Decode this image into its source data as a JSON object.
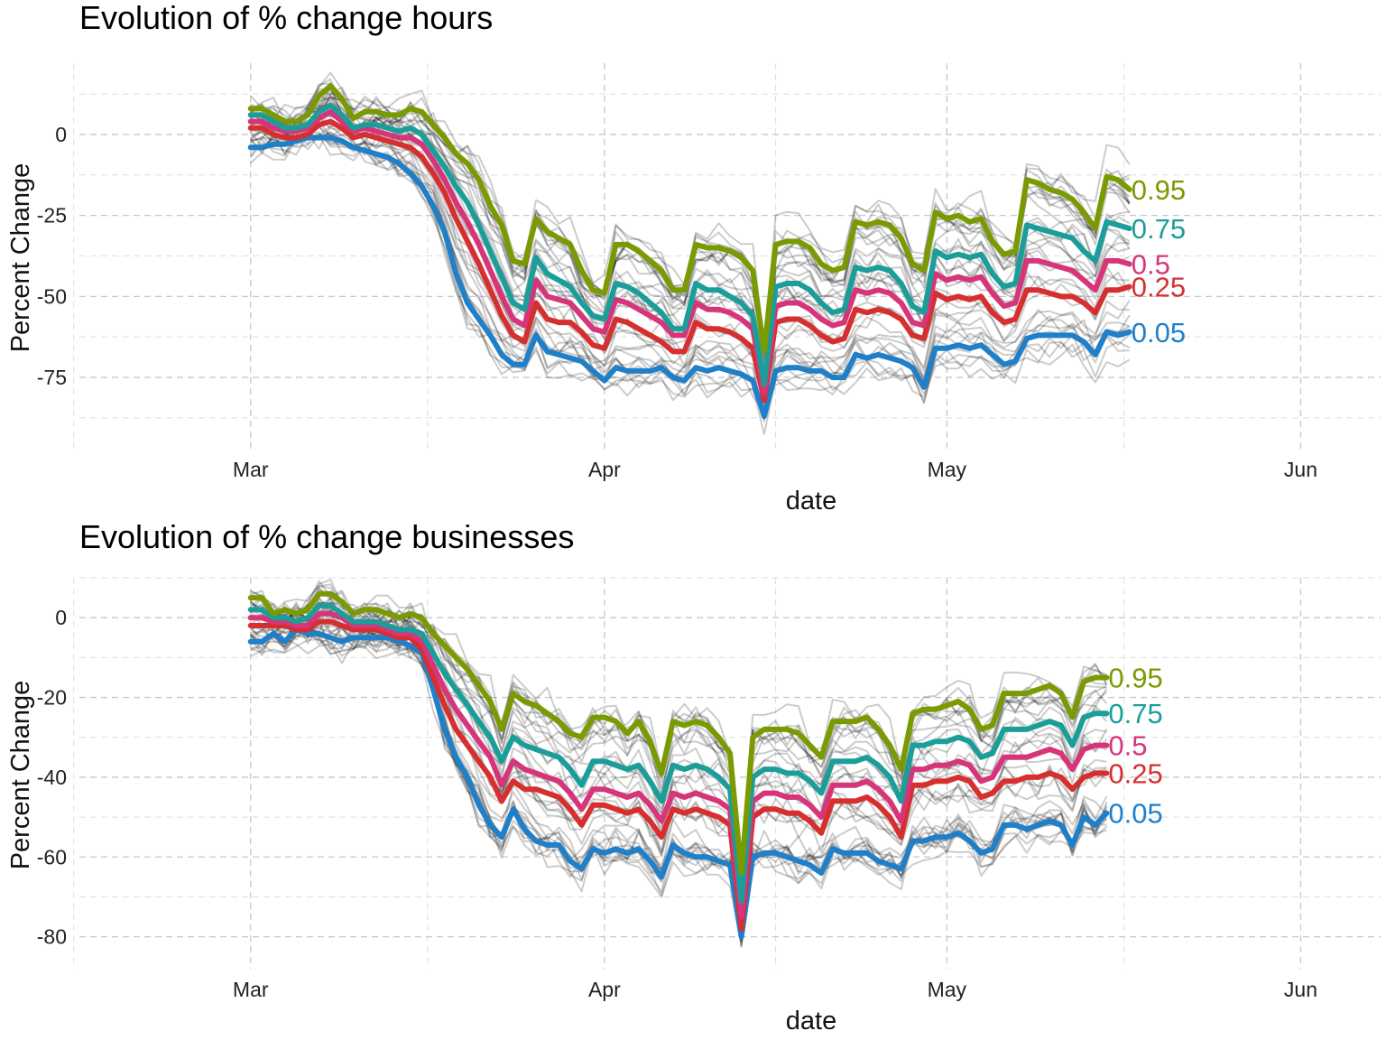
{
  "chart_data": [
    {
      "type": "line",
      "title": "Evolution of % change hours",
      "xlabel": "date",
      "ylabel": "Percent Change",
      "x_ticks": [
        "Mar",
        "Apr",
        "May",
        "Jun"
      ],
      "x_tick_dates": [
        "2020-03-01",
        "2020-04-01",
        "2020-05-01",
        "2020-06-01"
      ],
      "xlim": [
        "2020-02-15",
        "2020-06-08"
      ],
      "y_ticks": [
        0,
        -25,
        -50,
        -75
      ],
      "ylim": [
        -97,
        22
      ],
      "grid": true,
      "legend": "direct labels at line ends",
      "series": [
        {
          "name": "0.95",
          "color": "#7a9a01",
          "x_start": "2020-03-01",
          "values": [
            8,
            8,
            6,
            4,
            4,
            6,
            12,
            15,
            11,
            5,
            7,
            7,
            6,
            6,
            8,
            7,
            3,
            -1,
            -6,
            -9,
            -14,
            -22,
            -28,
            -39,
            -40,
            -26,
            -30,
            -32,
            -34,
            -42,
            -48,
            -49,
            -34,
            -34,
            -36,
            -39,
            -42,
            -48,
            -48,
            -34,
            -35,
            -35,
            -36,
            -38,
            -42,
            -67,
            -34,
            -33,
            -33,
            -35,
            -40,
            -42,
            -41,
            -27,
            -28,
            -27,
            -28,
            -32,
            -40,
            -42,
            -24,
            -26,
            -25,
            -27,
            -26,
            -33,
            -37,
            -36,
            -14,
            -15,
            -17,
            -18,
            -20,
            -24,
            -29,
            -13,
            -14,
            -17
          ]
        },
        {
          "name": "0.75",
          "color": "#1b9e9a",
          "x_start": "2020-03-01",
          "values": [
            6,
            6,
            4,
            2,
            2,
            3,
            7,
            9,
            6,
            2,
            3,
            3,
            2,
            1,
            2,
            0,
            -5,
            -10,
            -16,
            -21,
            -28,
            -36,
            -44,
            -52,
            -54,
            -38,
            -43,
            -45,
            -47,
            -52,
            -56,
            -57,
            -46,
            -47,
            -49,
            -52,
            -55,
            -60,
            -60,
            -46,
            -48,
            -48,
            -50,
            -52,
            -56,
            -77,
            -47,
            -46,
            -46,
            -48,
            -52,
            -55,
            -54,
            -41,
            -42,
            -41,
            -42,
            -46,
            -53,
            -55,
            -36,
            -38,
            -37,
            -38,
            -37,
            -43,
            -47,
            -46,
            -28,
            -29,
            -30,
            -31,
            -32,
            -36,
            -39,
            -27,
            -28,
            -29
          ]
        },
        {
          "name": "0.5",
          "color": "#d6357a",
          "x_start": "2020-03-01",
          "values": [
            4,
            4,
            2,
            1,
            1,
            2,
            5,
            7,
            4,
            1,
            2,
            1,
            0,
            -1,
            -1,
            -3,
            -8,
            -14,
            -21,
            -27,
            -34,
            -42,
            -50,
            -57,
            -59,
            -45,
            -50,
            -51,
            -52,
            -56,
            -60,
            -61,
            -51,
            -52,
            -54,
            -56,
            -58,
            -62,
            -62,
            -52,
            -54,
            -54,
            -55,
            -57,
            -60,
            -80,
            -53,
            -52,
            -52,
            -54,
            -57,
            -59,
            -58,
            -48,
            -49,
            -48,
            -49,
            -52,
            -58,
            -59,
            -43,
            -45,
            -44,
            -45,
            -44,
            -49,
            -53,
            -52,
            -39,
            -39,
            -40,
            -41,
            -42,
            -45,
            -48,
            -39,
            -39,
            -40
          ]
        },
        {
          "name": "0.25",
          "color": "#d62f2f",
          "x_start": "2020-03-01",
          "values": [
            2,
            2,
            0,
            -1,
            -1,
            0,
            3,
            4,
            2,
            -1,
            0,
            -1,
            -2,
            -3,
            -4,
            -7,
            -12,
            -18,
            -26,
            -33,
            -40,
            -48,
            -56,
            -62,
            -64,
            -52,
            -57,
            -58,
            -58,
            -61,
            -65,
            -66,
            -57,
            -58,
            -60,
            -62,
            -64,
            -67,
            -67,
            -58,
            -60,
            -60,
            -61,
            -63,
            -66,
            -82,
            -58,
            -57,
            -57,
            -59,
            -62,
            -64,
            -63,
            -54,
            -55,
            -54,
            -55,
            -57,
            -62,
            -63,
            -49,
            -51,
            -50,
            -51,
            -50,
            -55,
            -58,
            -57,
            -48,
            -48,
            -49,
            -50,
            -50,
            -52,
            -55,
            -48,
            -48,
            -47
          ]
        },
        {
          "name": "0.05",
          "color": "#1f7fc9",
          "x_start": "2020-03-01",
          "values": [
            -4,
            -4,
            -3,
            -3,
            -2,
            -1,
            -1,
            -1,
            -2,
            -4,
            -5,
            -6,
            -7,
            -9,
            -12,
            -16,
            -22,
            -30,
            -43,
            -52,
            -57,
            -62,
            -68,
            -71,
            -71,
            -62,
            -67,
            -68,
            -69,
            -70,
            -73,
            -76,
            -72,
            -73,
            -73,
            -73,
            -72,
            -75,
            -76,
            -72,
            -73,
            -72,
            -73,
            -74,
            -76,
            -87,
            -73,
            -72,
            -72,
            -73,
            -73,
            -75,
            -75,
            -68,
            -69,
            -68,
            -69,
            -70,
            -72,
            -78,
            -66,
            -66,
            -65,
            -66,
            -65,
            -68,
            -71,
            -70,
            -63,
            -62,
            -62,
            -62,
            -62,
            -64,
            -68,
            -61,
            -62,
            -61
          ]
        }
      ]
    },
    {
      "type": "line",
      "title": "Evolution of % change businesses",
      "xlabel": "date",
      "ylabel": "Percent Change",
      "x_ticks": [
        "Mar",
        "Apr",
        "May",
        "Jun"
      ],
      "x_tick_dates": [
        "2020-03-01",
        "2020-04-01",
        "2020-05-01",
        "2020-06-01"
      ],
      "xlim": [
        "2020-02-15",
        "2020-06-08"
      ],
      "y_ticks": [
        0,
        -20,
        -40,
        -60,
        -80
      ],
      "ylim": [
        -88,
        10
      ],
      "grid": true,
      "legend": "direct labels at line ends",
      "series": [
        {
          "name": "0.95",
          "color": "#7a9a01",
          "x_start": "2020-03-01",
          "values": [
            5,
            5,
            1,
            2,
            1,
            2,
            6,
            6,
            4,
            1,
            2,
            2,
            1,
            0,
            1,
            0,
            -4,
            -7,
            -10,
            -13,
            -17,
            -21,
            -28,
            -19,
            -21,
            -22,
            -24,
            -26,
            -29,
            -30,
            -25,
            -25,
            -26,
            -29,
            -26,
            -31,
            -39,
            -26,
            -27,
            -26,
            -27,
            -30,
            -34,
            -64,
            -30,
            -28,
            -28,
            -28,
            -29,
            -32,
            -35,
            -26,
            -26,
            -26,
            -25,
            -28,
            -32,
            -38,
            -24,
            -23,
            -23,
            -22,
            -21,
            -23,
            -28,
            -27,
            -19,
            -19,
            -19,
            -18,
            -17,
            -19,
            -25,
            -16,
            -15,
            -15
          ]
        },
        {
          "name": "0.75",
          "color": "#1b9e9a",
          "x_start": "2020-03-01",
          "values": [
            2,
            2,
            0,
            0,
            -1,
            0,
            3,
            3,
            1,
            -1,
            -1,
            -1,
            -2,
            -3,
            -3,
            -4,
            -9,
            -14,
            -18,
            -22,
            -26,
            -30,
            -36,
            -30,
            -32,
            -33,
            -34,
            -35,
            -38,
            -42,
            -36,
            -36,
            -37,
            -38,
            -37,
            -41,
            -46,
            -37,
            -38,
            -37,
            -38,
            -40,
            -43,
            -71,
            -40,
            -38,
            -38,
            -39,
            -39,
            -41,
            -44,
            -36,
            -36,
            -36,
            -35,
            -37,
            -40,
            -46,
            -32,
            -32,
            -31,
            -31,
            -30,
            -31,
            -35,
            -34,
            -28,
            -28,
            -28,
            -27,
            -26,
            -27,
            -32,
            -25,
            -24,
            -24
          ]
        },
        {
          "name": "0.5",
          "color": "#d6357a",
          "x_start": "2020-03-01",
          "values": [
            0,
            0,
            -1,
            -1,
            -2,
            -2,
            1,
            1,
            0,
            -2,
            -2,
            -2,
            -3,
            -4,
            -4,
            -6,
            -12,
            -18,
            -23,
            -27,
            -31,
            -35,
            -42,
            -36,
            -38,
            -39,
            -40,
            -41,
            -44,
            -48,
            -43,
            -43,
            -44,
            -45,
            -44,
            -47,
            -51,
            -44,
            -45,
            -44,
            -45,
            -46,
            -48,
            -75,
            -46,
            -44,
            -44,
            -45,
            -45,
            -47,
            -50,
            -42,
            -42,
            -42,
            -41,
            -43,
            -46,
            -51,
            -38,
            -38,
            -37,
            -37,
            -36,
            -37,
            -41,
            -40,
            -35,
            -35,
            -35,
            -34,
            -33,
            -34,
            -38,
            -33,
            -32,
            -32
          ]
        },
        {
          "name": "0.25",
          "color": "#d62f2f",
          "x_start": "2020-03-01",
          "values": [
            -2,
            -2,
            -2,
            -2,
            -3,
            -3,
            -1,
            -1,
            -2,
            -3,
            -3,
            -3,
            -4,
            -5,
            -5,
            -8,
            -15,
            -22,
            -28,
            -32,
            -36,
            -40,
            -46,
            -41,
            -43,
            -43,
            -44,
            -45,
            -48,
            -52,
            -47,
            -47,
            -48,
            -49,
            -48,
            -51,
            -55,
            -48,
            -49,
            -48,
            -49,
            -50,
            -52,
            -78,
            -50,
            -48,
            -48,
            -49,
            -49,
            -51,
            -54,
            -46,
            -46,
            -46,
            -45,
            -47,
            -50,
            -55,
            -42,
            -42,
            -41,
            -41,
            -40,
            -41,
            -45,
            -44,
            -41,
            -41,
            -40,
            -40,
            -39,
            -40,
            -43,
            -40,
            -39,
            -39
          ]
        },
        {
          "name": "0.05",
          "color": "#1f7fc9",
          "x_start": "2020-03-01",
          "values": [
            -6,
            -6,
            -4,
            -6,
            -3,
            -4,
            -4,
            -5,
            -6,
            -5,
            -5,
            -5,
            -5,
            -6,
            -7,
            -9,
            -18,
            -28,
            -35,
            -40,
            -47,
            -52,
            -55,
            -48,
            -53,
            -56,
            -57,
            -57,
            -61,
            -63,
            -58,
            -59,
            -58,
            -59,
            -58,
            -61,
            -65,
            -57,
            -59,
            -60,
            -60,
            -61,
            -62,
            -80,
            -60,
            -59,
            -59,
            -60,
            -61,
            -62,
            -64,
            -58,
            -59,
            -59,
            -59,
            -61,
            -62,
            -63,
            -56,
            -56,
            -55,
            -55,
            -54,
            -56,
            -59,
            -58,
            -52,
            -52,
            -53,
            -52,
            -51,
            -52,
            -57,
            -50,
            -52,
            -49
          ]
        }
      ]
    }
  ]
}
